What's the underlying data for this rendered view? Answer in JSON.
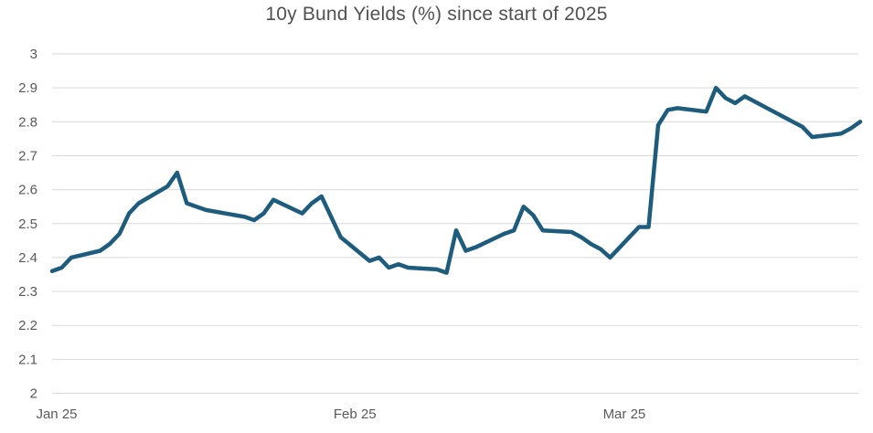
{
  "chart_data": {
    "type": "line",
    "title": "10y Bund Yields (%) since start of 2025",
    "ylabel": "",
    "xlabel": "",
    "ylim": [
      2,
      3
    ],
    "grid": "horizontal",
    "legend": "none",
    "line_color": "#1e5c7d",
    "grid_color": "#d9d9d9",
    "tick_color": "#595959",
    "yticks": [
      {
        "value": 3,
        "label": "3"
      },
      {
        "value": 2.9,
        "label": "2.9"
      },
      {
        "value": 2.8,
        "label": "2.8"
      },
      {
        "value": 2.7,
        "label": "2.7"
      },
      {
        "value": 2.6,
        "label": "2.6"
      },
      {
        "value": 2.5,
        "label": "2.5"
      },
      {
        "value": 2.4,
        "label": "2.4"
      },
      {
        "value": 2.3,
        "label": "2.3"
      },
      {
        "value": 2.2,
        "label": "2.2"
      },
      {
        "value": 2.1,
        "label": "2.1"
      },
      {
        "value": 2,
        "label": "2"
      }
    ],
    "xticks": [
      {
        "date": "2025-01-01",
        "label": "Jan 25"
      },
      {
        "date": "2025-02-01",
        "label": "Feb 25"
      },
      {
        "date": "2025-03-01",
        "label": "Mar 25"
      }
    ],
    "series": [
      {
        "name": "10y Bund yield (%)",
        "points": [
          [
            "2025-01-01",
            2.36
          ],
          [
            "2025-01-02",
            2.37
          ],
          [
            "2025-01-03",
            2.4
          ],
          [
            "2025-01-06",
            2.42
          ],
          [
            "2025-01-07",
            2.44
          ],
          [
            "2025-01-08",
            2.47
          ],
          [
            "2025-01-09",
            2.53
          ],
          [
            "2025-01-10",
            2.56
          ],
          [
            "2025-01-13",
            2.61
          ],
          [
            "2025-01-14",
            2.65
          ],
          [
            "2025-01-15",
            2.56
          ],
          [
            "2025-01-16",
            2.55
          ],
          [
            "2025-01-17",
            2.54
          ],
          [
            "2025-01-20",
            2.525
          ],
          [
            "2025-01-21",
            2.52
          ],
          [
            "2025-01-22",
            2.51
          ],
          [
            "2025-01-23",
            2.53
          ],
          [
            "2025-01-24",
            2.57
          ],
          [
            "2025-01-27",
            2.53
          ],
          [
            "2025-01-28",
            2.56
          ],
          [
            "2025-01-29",
            2.58
          ],
          [
            "2025-01-30",
            2.52
          ],
          [
            "2025-01-31",
            2.46
          ],
          [
            "2025-02-03",
            2.39
          ],
          [
            "2025-02-04",
            2.4
          ],
          [
            "2025-02-05",
            2.37
          ],
          [
            "2025-02-06",
            2.38
          ],
          [
            "2025-02-07",
            2.37
          ],
          [
            "2025-02-10",
            2.365
          ],
          [
            "2025-02-11",
            2.355
          ],
          [
            "2025-02-12",
            2.48
          ],
          [
            "2025-02-13",
            2.42
          ],
          [
            "2025-02-14",
            2.43
          ],
          [
            "2025-02-17",
            2.47
          ],
          [
            "2025-02-18",
            2.48
          ],
          [
            "2025-02-19",
            2.55
          ],
          [
            "2025-02-20",
            2.525
          ],
          [
            "2025-02-21",
            2.48
          ],
          [
            "2025-02-24",
            2.475
          ],
          [
            "2025-02-25",
            2.46
          ],
          [
            "2025-02-26",
            2.44
          ],
          [
            "2025-02-27",
            2.425
          ],
          [
            "2025-02-28",
            2.4
          ],
          [
            "2025-03-03",
            2.49
          ],
          [
            "2025-03-04",
            2.49
          ],
          [
            "2025-03-05",
            2.79
          ],
          [
            "2025-03-06",
            2.835
          ],
          [
            "2025-03-07",
            2.84
          ],
          [
            "2025-03-10",
            2.83
          ],
          [
            "2025-03-11",
            2.9
          ],
          [
            "2025-03-12",
            2.87
          ],
          [
            "2025-03-13",
            2.855
          ],
          [
            "2025-03-14",
            2.875
          ],
          [
            "2025-03-17",
            2.83
          ],
          [
            "2025-03-18",
            2.815
          ],
          [
            "2025-03-19",
            2.8
          ],
          [
            "2025-03-20",
            2.785
          ],
          [
            "2025-03-21",
            2.755
          ],
          [
            "2025-03-24",
            2.765
          ],
          [
            "2025-03-25",
            2.78
          ],
          [
            "2025-03-26",
            2.8
          ]
        ]
      }
    ]
  }
}
